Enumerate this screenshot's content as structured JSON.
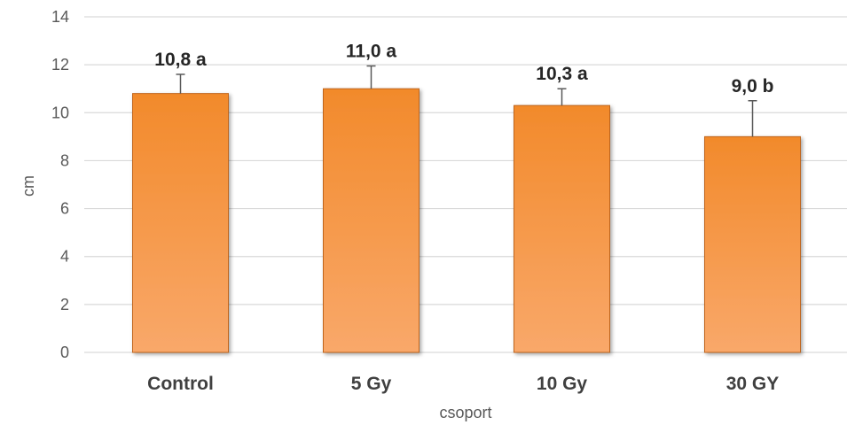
{
  "chart_data": {
    "type": "bar",
    "categories": [
      "Control",
      "5 Gy",
      "10 Gy",
      "30 GY"
    ],
    "values": [
      10.8,
      11.0,
      10.3,
      9.0
    ],
    "error_plus": [
      0.8,
      0.95,
      0.7,
      1.5
    ],
    "data_labels": [
      "10,8 a",
      "11,0 a",
      "10,3 a",
      "9,0 b"
    ],
    "xlabel": "csoport",
    "ylabel": "cm",
    "ylim": [
      0,
      14
    ],
    "yticks": [
      "0",
      "2",
      "4",
      "6",
      "8",
      "10",
      "12",
      "14"
    ],
    "grid": true,
    "legend": "none",
    "colors": {
      "bar_top": "#f28a2b",
      "bar_bottom": "#f9a86a",
      "bar_edge": "#c0651a",
      "error_bar": "#595959",
      "grid": "#d9d9d9"
    }
  }
}
